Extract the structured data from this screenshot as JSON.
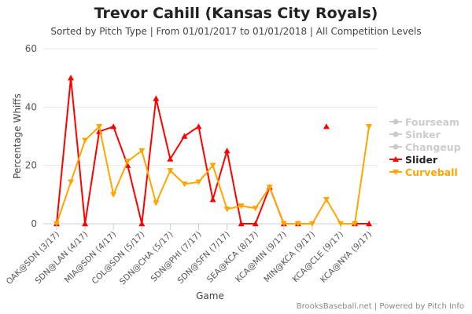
{
  "chart_data": {
    "type": "line",
    "title": "Trevor Cahill (Kansas City Royals)",
    "subtitle": "Sorted by Pitch Type | From 01/01/2017 to 01/01/2018 | All Competition Levels",
    "xlabel": "Game",
    "ylabel": "Percentage Whiffs",
    "ylim": [
      0,
      60
    ],
    "yticks": [
      0,
      20,
      40,
      60
    ],
    "x_labels": [
      "OAK@SDN (3/17)",
      "",
      "SDN@LAN (4/17)",
      "",
      "MIA@SDN (4/17)",
      "",
      "COL@SDN (5/17)",
      "",
      "SDN@CHA (5/17)",
      "",
      "SDN@PHI (7/17)",
      "",
      "SDN@SFN (7/17)",
      "",
      "SEA@KCA (8/17)",
      "",
      "KCA@MIN (9/17)",
      "",
      "MIN@KCA (9/17)",
      "",
      "KCA@CLE (9/17)",
      "",
      "KCA@NYA (9/17)"
    ],
    "series": [
      {
        "name": "Fourseam",
        "color": "#cccccc",
        "visible": false,
        "values": []
      },
      {
        "name": "Sinker",
        "color": "#cccccc",
        "visible": false,
        "values": []
      },
      {
        "name": "Changeup",
        "color": "#cccccc",
        "visible": false,
        "values": []
      },
      {
        "name": "Slider",
        "color": "#ff0000",
        "visible": true,
        "marker": "triangle-up",
        "values": [
          0,
          50,
          0,
          31.6,
          33.3,
          20,
          0,
          42.9,
          22.2,
          30,
          33.3,
          8.3,
          25,
          0,
          0,
          12.5,
          0,
          0,
          null,
          33.3,
          null,
          0,
          0
        ]
      },
      {
        "name": "Curveball",
        "color": "#ffa500",
        "visible": true,
        "marker": "triangle-down",
        "values": [
          0,
          14.3,
          28.6,
          33.3,
          10,
          21.4,
          25,
          7.1,
          18.2,
          13.6,
          14.3,
          20,
          5,
          6.1,
          5.3,
          12.5,
          0,
          0,
          0,
          8.3,
          0,
          0,
          33.3
        ]
      }
    ]
  },
  "credit": "BrooksBaseball.net | Powered by Pitch Info"
}
